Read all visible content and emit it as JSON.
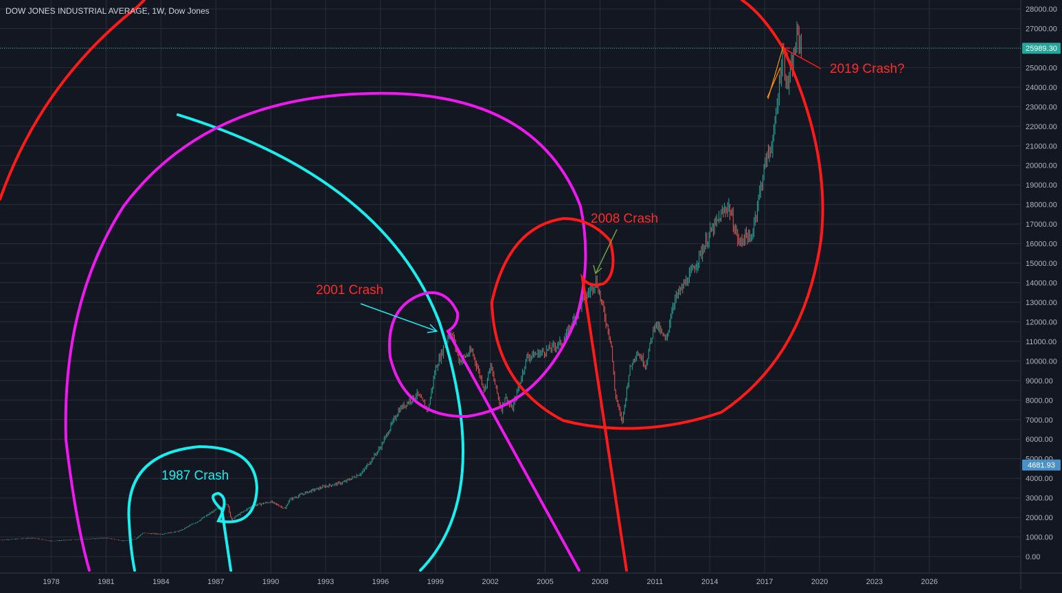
{
  "header": {
    "title": "DOW JONES INDUSTRIAL AVERAGE, 1W, Dow Jones"
  },
  "colors": {
    "background": "#131722",
    "grid": "#2a2e39",
    "text": "#b2b5be",
    "up_candle": "#26a69a",
    "down_candle": "#ef5350",
    "current_price_badge": "#26a69a",
    "marker_badge": "#4a90c9",
    "spiral_cyan": "#18f0f0",
    "spiral_magenta": "#f018f0",
    "spiral_red": "#ff1a1a"
  },
  "price_axis": {
    "current_price_label": "25989.30",
    "marker_label": "4681.93"
  },
  "annotations": {
    "crash_1987": "1987 Crash",
    "crash_2001": "2001 Crash",
    "crash_2008": "2008 Crash",
    "crash_2019": "2019 Crash?"
  },
  "chart_data": {
    "type": "candlestick",
    "title": "DOW JONES INDUSTRIAL AVERAGE, 1W, Dow Jones",
    "xlim": [
      1975.2,
      2031.0
    ],
    "ylim": [
      -1200,
      28400
    ],
    "x_ticks": [
      "1978",
      "1981",
      "1984",
      "1987",
      "1990",
      "1993",
      "1996",
      "1999",
      "2002",
      "2005",
      "2008",
      "2011",
      "2014",
      "2017",
      "2020",
      "2023",
      "2026"
    ],
    "y_ticks": [
      "0.00",
      "1000.00",
      "2000.00",
      "3000.00",
      "4000.00",
      "5000.00",
      "6000.00",
      "7000.00",
      "8000.00",
      "9000.00",
      "10000.00",
      "11000.00",
      "12000.00",
      "13000.00",
      "14000.00",
      "15000.00",
      "16000.00",
      "17000.00",
      "18000.00",
      "19000.00",
      "20000.00",
      "21000.00",
      "22000.00",
      "23000.00",
      "24000.00",
      "25000.00",
      "26000.00",
      "27000.00",
      "28000.00"
    ],
    "current_price": 25989.3,
    "marker_price": 4681.93,
    "series": [
      {
        "values": [
          [
            1975.2,
            850
          ],
          [
            1977,
            950
          ],
          [
            1978,
            800
          ],
          [
            1979,
            850
          ],
          [
            1980,
            900
          ],
          [
            1981,
            950
          ],
          [
            1982,
            800
          ],
          [
            1982.6,
            900
          ],
          [
            1983,
            1200
          ],
          [
            1984,
            1150
          ],
          [
            1985,
            1300
          ],
          [
            1986,
            1800
          ],
          [
            1987,
            2400
          ],
          [
            1987.65,
            2700
          ],
          [
            1987.85,
            1850
          ],
          [
            1988,
            2000
          ],
          [
            1989,
            2600
          ],
          [
            1990,
            2800
          ],
          [
            1990.8,
            2450
          ],
          [
            1991,
            2900
          ],
          [
            1992,
            3300
          ],
          [
            1993,
            3600
          ],
          [
            1994,
            3800
          ],
          [
            1995,
            4300
          ],
          [
            1996,
            5600
          ],
          [
            1997,
            7500
          ],
          [
            1998,
            8300
          ],
          [
            1998.6,
            7500
          ],
          [
            1999,
            9600
          ],
          [
            1999.8,
            11500
          ],
          [
            2000,
            11100
          ],
          [
            2000.3,
            10000
          ],
          [
            2001,
            10500
          ],
          [
            2001.7,
            8500
          ],
          [
            2002,
            9800
          ],
          [
            2002.6,
            7500
          ],
          [
            2002.8,
            8200
          ],
          [
            2003.2,
            7500
          ],
          [
            2004,
            10200
          ],
          [
            2005,
            10500
          ],
          [
            2006,
            11000
          ],
          [
            2007,
            13000
          ],
          [
            2007.8,
            14100
          ],
          [
            2008.2,
            12500
          ],
          [
            2008.6,
            11000
          ],
          [
            2008.8,
            8500
          ],
          [
            2009.2,
            6800
          ],
          [
            2009.6,
            9500
          ],
          [
            2010,
            10500
          ],
          [
            2010.5,
            9800
          ],
          [
            2011,
            12000
          ],
          [
            2011.6,
            11000
          ],
          [
            2012,
            13000
          ],
          [
            2013,
            14500
          ],
          [
            2014,
            16500
          ],
          [
            2015,
            18000
          ],
          [
            2015.6,
            16000
          ],
          [
            2016,
            16500
          ],
          [
            2016.2,
            16000
          ],
          [
            2016.9,
            19500
          ],
          [
            2017,
            20000
          ],
          [
            2017.5,
            21500
          ],
          [
            2018,
            26000
          ],
          [
            2018.2,
            24000
          ],
          [
            2018.5,
            25000
          ],
          [
            2018.8,
            26800
          ],
          [
            2019,
            25989.3
          ]
        ]
      }
    ],
    "spirals": [
      {
        "color": "cyan"
      },
      {
        "color": "magenta"
      },
      {
        "color": "red"
      }
    ]
  }
}
